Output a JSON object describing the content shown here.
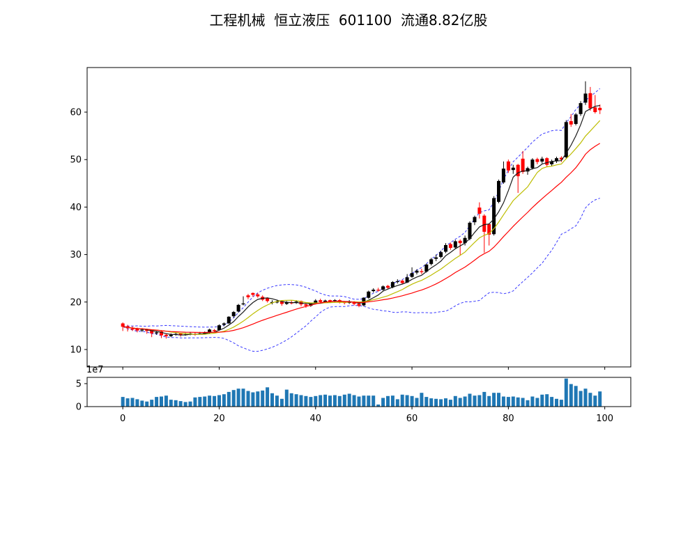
{
  "chart_data": {
    "type": "candlestick",
    "title": "工程机械  恒立液压  601100  流通8.82亿股",
    "stock": {
      "sector": "工程机械",
      "name": "恒立液压",
      "code": "601100",
      "float_shares": "流通8.82亿股"
    },
    "xlim": [
      -7.4,
      105.4
    ],
    "x_ticks": [
      0,
      20,
      40,
      60,
      80,
      100
    ],
    "price": {
      "ticks": [
        10,
        20,
        30,
        40,
        50,
        60
      ],
      "ylim": [
        6.33,
        69.39
      ]
    },
    "volume": {
      "ticks": [
        0,
        5
      ],
      "offset_label": "1e7",
      "ylim": [
        0,
        63600000
      ],
      "unit": 10000000
    },
    "colors": {
      "up": "#000000",
      "down": "#ff0000",
      "volume": "#1f77b4",
      "ma_short": "#1a1a1a",
      "ma_mid": "#bdbd00",
      "ma_long": "#ff0000",
      "band": "#3a3aff",
      "spine": "#000000",
      "background": "#ffffff"
    },
    "overlays": [
      {
        "name": "MA5",
        "type": "sma",
        "window": 5,
        "color": "#1a1a1a"
      },
      {
        "name": "MA10",
        "type": "sma",
        "window": 10,
        "color": "#bdbd00"
      },
      {
        "name": "MA20",
        "type": "sma",
        "window": 20,
        "color": "#ff0000"
      },
      {
        "name": "BOLL(20,2)",
        "type": "bollinger",
        "window": 20,
        "k": 2,
        "color": "#3a3aff",
        "dash": "3.5 2.5"
      }
    ],
    "ohlc": [
      [
        15.5,
        15.7,
        13.9,
        14.8
      ],
      [
        14.9,
        15.2,
        13.8,
        14.5
      ],
      [
        14.4,
        14.9,
        13.9,
        14.3
      ],
      [
        14.5,
        14.6,
        13.6,
        14.0
      ],
      [
        14.0,
        14.5,
        13.7,
        14.2
      ],
      [
        14.3,
        14.4,
        13.3,
        13.9
      ],
      [
        14.0,
        14.1,
        12.6,
        13.4
      ],
      [
        13.4,
        13.9,
        13.1,
        13.6
      ],
      [
        13.8,
        13.9,
        12.4,
        13.0
      ],
      [
        13.1,
        13.3,
        12.3,
        12.8
      ],
      [
        12.8,
        13.4,
        12.6,
        13.1
      ],
      [
        13.1,
        13.6,
        12.9,
        13.3
      ],
      [
        13.4,
        13.5,
        12.7,
        13.0
      ],
      [
        13.1,
        13.5,
        12.9,
        13.2
      ],
      [
        13.4,
        13.7,
        13.0,
        13.4
      ],
      [
        13.3,
        13.6,
        12.9,
        13.2
      ],
      [
        13.3,
        13.7,
        13.1,
        13.4
      ],
      [
        13.5,
        13.8,
        13.2,
        13.6
      ],
      [
        13.6,
        14.4,
        13.4,
        14.2
      ],
      [
        14.1,
        14.3,
        13.7,
        14.0
      ],
      [
        14.1,
        15.3,
        14.0,
        15.1
      ],
      [
        15.2,
        15.7,
        14.9,
        15.5
      ],
      [
        15.5,
        17.0,
        15.4,
        16.9
      ],
      [
        17.0,
        18.1,
        16.7,
        17.9
      ],
      [
        18.0,
        19.6,
        17.8,
        19.4
      ],
      [
        19.5,
        21.2,
        19.3,
        19.7
      ],
      [
        21.4,
        21.7,
        20.6,
        21.0
      ],
      [
        21.9,
        22.0,
        21.1,
        21.5
      ],
      [
        21.6,
        21.9,
        20.9,
        21.2
      ],
      [
        21.1,
        21.4,
        20.2,
        20.5
      ],
      [
        20.8,
        21.0,
        19.9,
        20.2
      ],
      [
        19.9,
        20.4,
        19.5,
        20.0
      ],
      [
        20.1,
        20.5,
        19.7,
        20.1
      ],
      [
        20.2,
        20.4,
        19.2,
        19.6
      ],
      [
        19.6,
        20.2,
        19.4,
        19.9
      ],
      [
        19.9,
        20.3,
        19.5,
        19.8
      ],
      [
        19.9,
        20.4,
        19.6,
        20.1
      ],
      [
        20.2,
        20.3,
        19.1,
        19.5
      ],
      [
        19.5,
        19.8,
        18.8,
        19.2
      ],
      [
        19.2,
        19.8,
        19.0,
        19.6
      ],
      [
        19.7,
        20.6,
        19.5,
        20.3
      ],
      [
        20.4,
        20.7,
        19.7,
        20.0
      ],
      [
        20.0,
        20.5,
        19.8,
        20.3
      ],
      [
        20.4,
        20.5,
        19.8,
        20.1
      ],
      [
        20.1,
        20.6,
        19.9,
        20.4
      ],
      [
        20.4,
        20.6,
        19.7,
        20.0
      ],
      [
        20.0,
        20.2,
        19.5,
        19.8
      ],
      [
        19.8,
        20.4,
        19.6,
        20.1
      ],
      [
        20.1,
        20.2,
        19.3,
        19.6
      ],
      [
        19.6,
        19.8,
        18.9,
        19.2
      ],
      [
        19.3,
        21.0,
        19.1,
        20.9
      ],
      [
        20.9,
        22.4,
        20.7,
        22.2
      ],
      [
        22.3,
        22.9,
        22.0,
        22.6
      ],
      [
        22.6,
        23.0,
        22.2,
        22.5
      ],
      [
        22.6,
        23.5,
        22.4,
        23.3
      ],
      [
        23.4,
        23.6,
        22.7,
        23.0
      ],
      [
        23.1,
        24.4,
        22.9,
        24.2
      ],
      [
        24.3,
        24.8,
        23.9,
        24.4
      ],
      [
        24.5,
        24.7,
        23.7,
        24.0
      ],
      [
        24.1,
        25.9,
        24.0,
        25.2
      ],
      [
        25.3,
        27.3,
        25.1,
        26.1
      ],
      [
        26.2,
        26.9,
        25.8,
        26.6
      ],
      [
        26.5,
        27.0,
        25.9,
        26.3
      ],
      [
        26.4,
        28.1,
        26.2,
        27.9
      ],
      [
        28.0,
        29.3,
        27.7,
        29.0
      ],
      [
        29.1,
        30.0,
        28.6,
        29.4
      ],
      [
        29.5,
        30.8,
        29.2,
        30.5
      ],
      [
        30.6,
        32.4,
        30.3,
        32.0
      ],
      [
        32.2,
        32.5,
        31.0,
        31.4
      ],
      [
        31.5,
        33.1,
        31.2,
        32.8
      ],
      [
        32.9,
        33.2,
        29.9,
        32.4
      ],
      [
        32.4,
        34.0,
        31.9,
        33.5
      ],
      [
        33.3,
        37.0,
        33.0,
        36.7
      ],
      [
        36.8,
        38.2,
        36.2,
        37.9
      ],
      [
        39.9,
        41.0,
        37.6,
        38.6
      ],
      [
        38.2,
        38.5,
        30.4,
        34.8
      ],
      [
        36.4,
        36.6,
        31.9,
        34.2
      ],
      [
        34.3,
        42.3,
        34.0,
        41.9
      ],
      [
        41.1,
        45.8,
        40.8,
        45.5
      ],
      [
        45.2,
        49.6,
        44.9,
        48.1
      ],
      [
        49.6,
        50.0,
        47.2,
        47.7
      ],
      [
        47.8,
        48.9,
        47.0,
        48.3
      ],
      [
        48.9,
        49.1,
        43.0,
        46.5
      ],
      [
        50.2,
        51.8,
        47.0,
        47.4
      ],
      [
        47.5,
        48.5,
        46.8,
        48.2
      ],
      [
        48.2,
        50.3,
        47.9,
        50.0
      ],
      [
        50.1,
        50.4,
        49.0,
        49.5
      ],
      [
        49.6,
        50.6,
        49.2,
        50.2
      ],
      [
        50.3,
        50.5,
        48.5,
        48.9
      ],
      [
        49.0,
        50.0,
        48.6,
        49.6
      ],
      [
        49.7,
        50.6,
        49.3,
        50.3
      ],
      [
        50.4,
        50.7,
        49.5,
        50.0
      ],
      [
        50.5,
        58.3,
        50.2,
        57.9
      ],
      [
        58.1,
        59.6,
        56.9,
        57.4
      ],
      [
        57.5,
        59.8,
        57.2,
        59.5
      ],
      [
        59.6,
        62.3,
        59.2,
        61.9
      ],
      [
        62.0,
        66.5,
        61.5,
        63.9
      ],
      [
        64.0,
        65.3,
        60.3,
        60.8
      ],
      [
        61.0,
        63.6,
        59.7,
        60.0
      ],
      [
        60.9,
        61.6,
        59.6,
        60.4
      ]
    ],
    "volumes_e7": [
      2.1,
      1.8,
      1.9,
      1.6,
      1.3,
      1.1,
      1.5,
      2.1,
      2.2,
      2.4,
      1.5,
      1.4,
      1.2,
      1.0,
      1.1,
      2.0,
      2.1,
      2.2,
      2.4,
      2.3,
      2.5,
      2.7,
      3.2,
      3.6,
      3.9,
      3.9,
      3.4,
      3.1,
      3.3,
      3.5,
      4.2,
      2.9,
      2.4,
      1.7,
      3.7,
      2.9,
      2.7,
      2.5,
      2.3,
      2.1,
      2.3,
      2.5,
      2.6,
      2.4,
      2.5,
      2.3,
      2.6,
      2.8,
      2.5,
      2.2,
      2.4,
      2.4,
      2.4,
      0.45,
      1.9,
      2.3,
      2.4,
      1.6,
      2.6,
      2.5,
      2.3,
      1.9,
      3.0,
      2.1,
      1.8,
      1.7,
      1.6,
      1.8,
      1.5,
      2.3,
      1.9,
      2.2,
      2.8,
      2.4,
      2.5,
      3.2,
      2.3,
      3.0,
      3.0,
      2.2,
      2.1,
      2.2,
      2.0,
      1.9,
      1.4,
      2.2,
      1.9,
      2.6,
      2.7,
      2.1,
      1.7,
      1.5,
      6.1,
      4.9,
      4.5,
      3.4,
      3.9,
      3.0,
      2.4,
      3.3
    ]
  }
}
